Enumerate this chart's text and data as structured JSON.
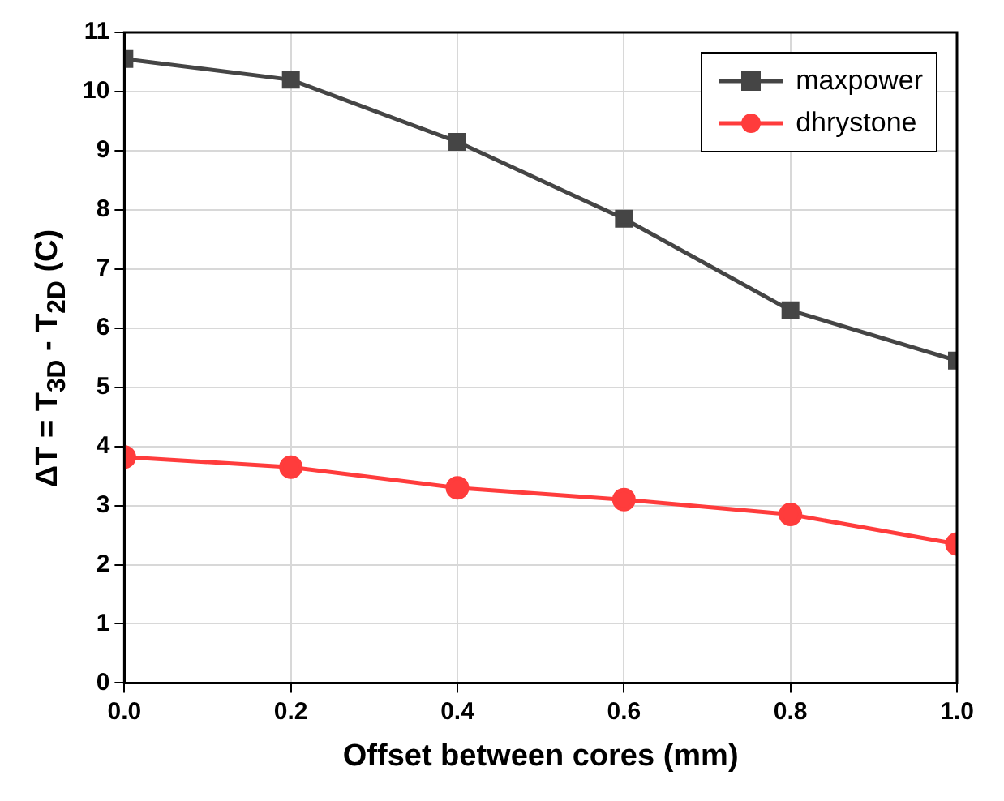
{
  "chart_data": {
    "type": "line",
    "xlabel": "Offset between cores (mm)",
    "ylabel": "ΔT = T$_{3D}$ - T$_{2D}$ (C)",
    "x": [
      0,
      0.2,
      0.4,
      0.6,
      0.8,
      1.0
    ],
    "series": [
      {
        "name": "maxpower",
        "color": "#454545",
        "marker": "square",
        "values": [
          10.55,
          10.2,
          9.15,
          7.85,
          6.3,
          5.45
        ]
      },
      {
        "name": "dhrystone",
        "color": "#ff3c3c",
        "marker": "circle",
        "values": [
          3.82,
          3.65,
          3.3,
          3.1,
          2.85,
          2.35
        ]
      }
    ],
    "xlim": [
      0,
      1
    ],
    "xticks": [
      {
        "value": 0,
        "label": "0.0"
      },
      {
        "value": 0.2,
        "label": "0.2"
      },
      {
        "value": 0.4,
        "label": "0.4"
      },
      {
        "value": 0.6,
        "label": "0.6"
      },
      {
        "value": 0.8,
        "label": "0.8"
      },
      {
        "value": 1,
        "label": "1.0"
      }
    ],
    "ylim": [
      0,
      11
    ],
    "yticks": [
      0,
      1,
      2,
      3,
      4,
      5,
      6,
      7,
      8,
      9,
      10,
      11
    ],
    "grid": true,
    "legend": "top right",
    "line_style": "solid"
  }
}
